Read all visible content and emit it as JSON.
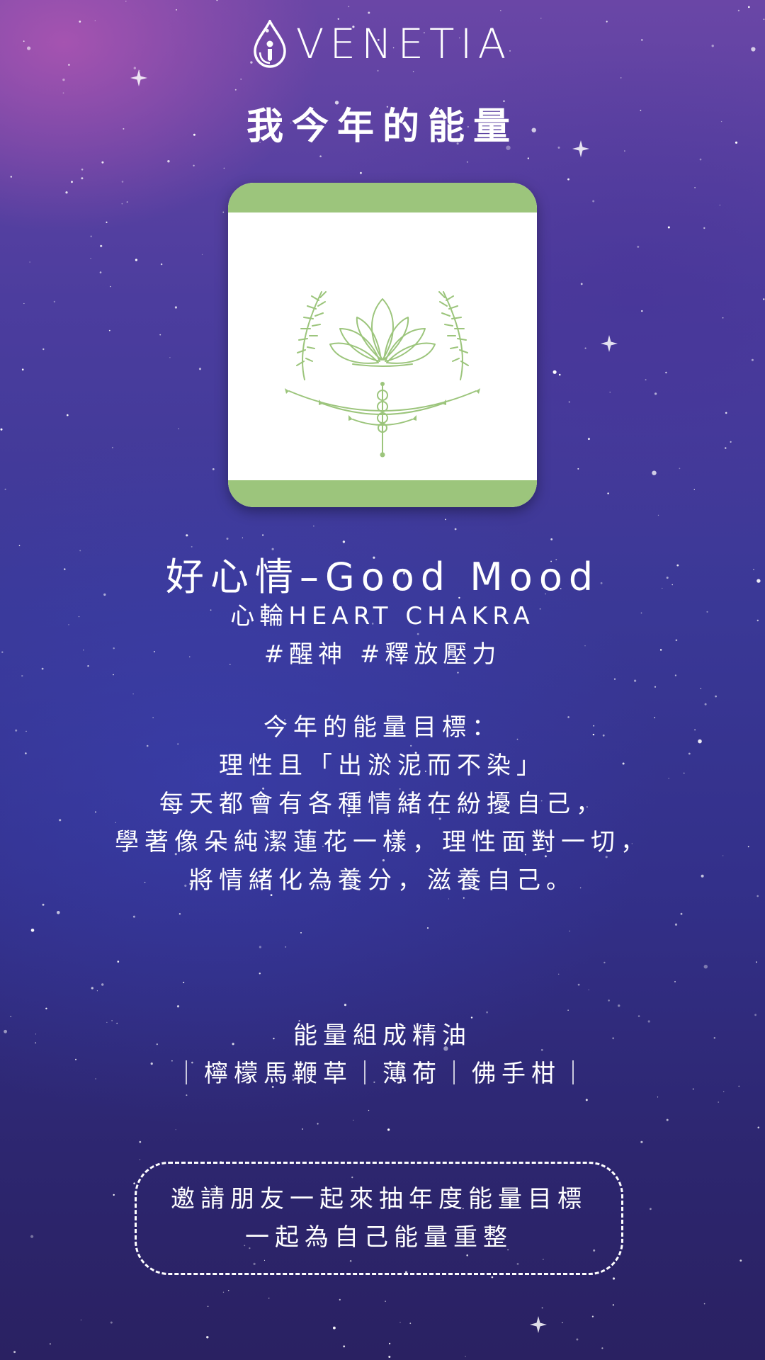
{
  "colors": {
    "card_band": "#9cc57c",
    "line_art": "#9cc57c",
    "text": "#ffffff"
  },
  "brand": {
    "logo_icon": "drop-logo-icon",
    "name": "VENETIA"
  },
  "page_title": "我今年的能量",
  "card": {
    "illustration": "lotus-chakra-icon"
  },
  "mood": {
    "title": "好心情–Good Mood",
    "chakra": "心輪HEART CHAKRA",
    "tags": "#醒神 #釋放壓力"
  },
  "goal": {
    "lines": [
      "今年的能量目標：",
      "理性且「出淤泥而不染」",
      "每天都會有各種情緒在紛擾自己，",
      "學著像朵純潔蓮花一樣，理性面對一切，",
      "將情緒化為養分，滋養自己。"
    ]
  },
  "oils": {
    "title": "能量組成精油",
    "list": "｜檸檬馬鞭草｜薄荷｜佛手柑｜"
  },
  "invite": {
    "line1": "邀請朋友一起來抽年度能量目標",
    "line2": "一起為自己能量重整"
  }
}
